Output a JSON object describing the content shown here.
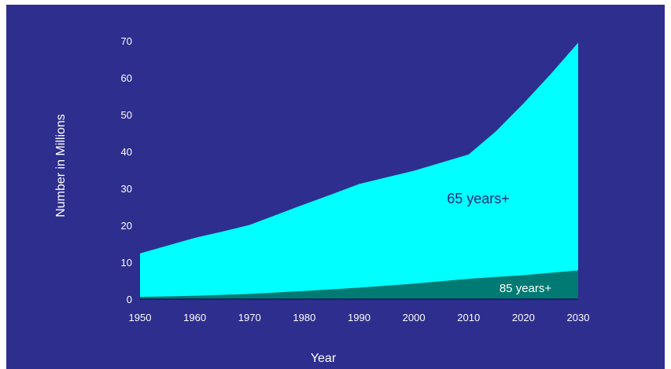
{
  "colors": {
    "background": "#2e2e8f",
    "series_65": "#00ffff",
    "series_85": "#007a72",
    "text": "#ffffff",
    "label_65": "#1a2a7a"
  },
  "chart_data": {
    "type": "area",
    "title": "",
    "xlabel": "Year",
    "ylabel": "Number in Millions",
    "xlim": [
      1950,
      2030
    ],
    "ylim": [
      0,
      70
    ],
    "x_ticks": [
      1950,
      1960,
      1970,
      1980,
      1990,
      2000,
      2010,
      2020,
      2030
    ],
    "y_ticks": [
      0,
      10,
      20,
      30,
      40,
      50,
      60,
      70
    ],
    "grid": false,
    "legend": "none",
    "series": [
      {
        "name": "65 years+",
        "x": [
          1950,
          1955,
          1960,
          1965,
          1970,
          1975,
          1980,
          1985,
          1990,
          1995,
          2000,
          2005,
          2010,
          2015,
          2020,
          2025,
          2030
        ],
        "values": [
          12.4,
          14.5,
          16.6,
          18.3,
          20.1,
          22.9,
          25.7,
          28.4,
          31.2,
          33.0,
          34.8,
          37.0,
          39.2,
          45.5,
          53.0,
          61.0,
          69.5
        ]
      },
      {
        "name": "85 years+",
        "x": [
          1950,
          1960,
          1970,
          1980,
          1990,
          2000,
          2010,
          2020,
          2030
        ],
        "values": [
          0.6,
          0.9,
          1.4,
          2.2,
          3.1,
          4.2,
          5.5,
          6.5,
          7.8
        ]
      }
    ]
  }
}
